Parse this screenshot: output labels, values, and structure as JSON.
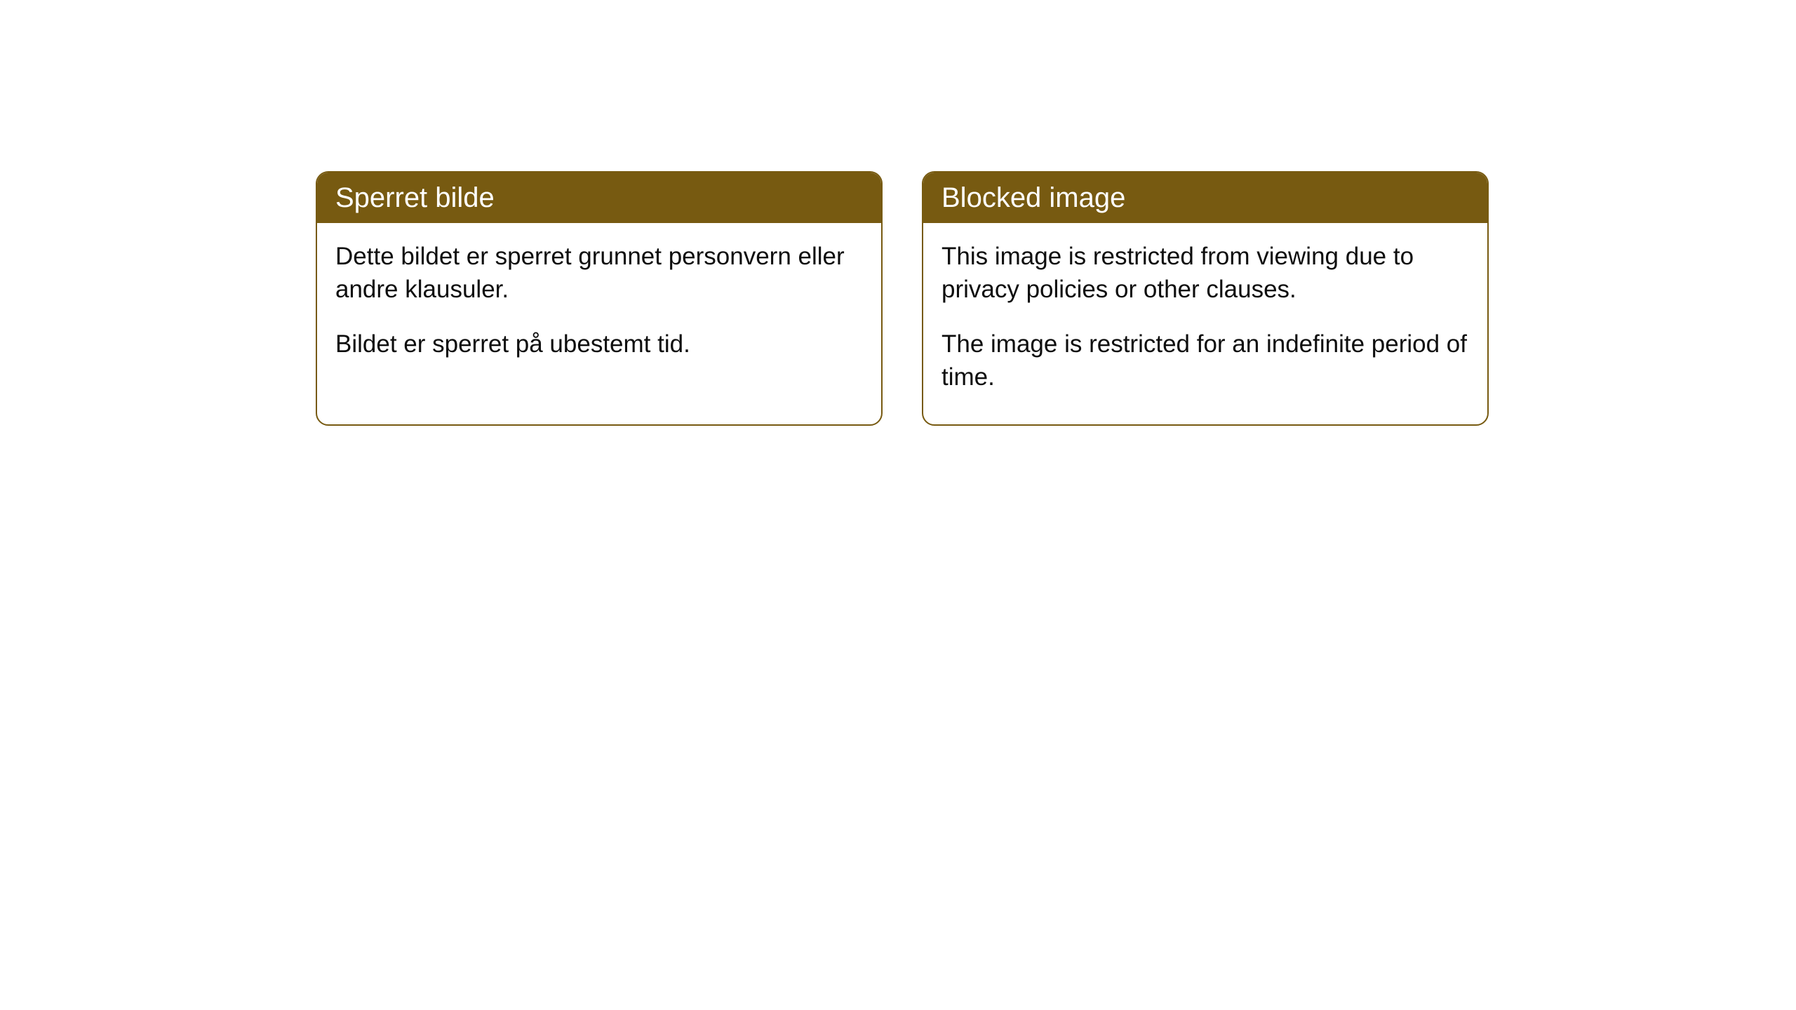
{
  "cards": [
    {
      "title": "Sperret bilde",
      "para1": "Dette bildet er sperret grunnet personvern eller andre klausuler.",
      "para2": "Bildet er sperret på ubestemt tid."
    },
    {
      "title": "Blocked image",
      "para1": "This image is restricted from viewing due to privacy policies or other clauses.",
      "para2": "The image is restricted for an indefinite period of time."
    }
  ],
  "style": {
    "header_bg": "#775a11",
    "header_text_color": "#ffffff",
    "border_color": "#775a11",
    "body_text_color": "#0d0d0d",
    "background_color": "#ffffff",
    "border_radius": 18,
    "header_fontsize": 40,
    "body_fontsize": 35
  }
}
